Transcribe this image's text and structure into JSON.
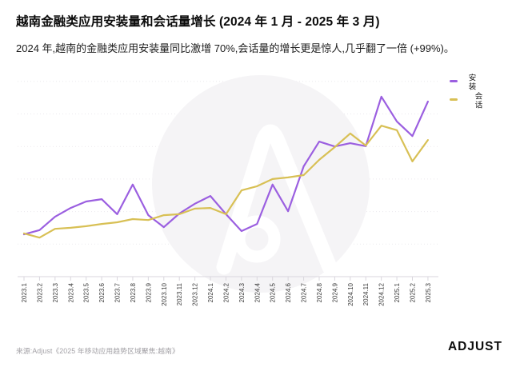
{
  "header": {
    "title": "越南金融类应用安装量和会话量增长 (2024 年 1 月 - 2025 年 3 月)",
    "subtitle": "2024 年,越南的金融类应用安装量同比激增 70%,会话量的增长更是惊人,几乎翻了一倍 (+99%)。"
  },
  "footer": {
    "source": "来源:Adjust《2025 年移动应用趋势区域聚焦:越南》",
    "brand": "ADJUST"
  },
  "colors": {
    "installs_line": "#9b5fe0",
    "sessions_line": "#d8c055",
    "gridline": "#ece9ee",
    "axis": "#d9d6dd",
    "tick_label": "#3b3b3b",
    "watermark_circle": "#f5f4f6",
    "watermark_mark": "#ffffff"
  },
  "chart_data": {
    "type": "line",
    "title": "越南金融类应用安装量和会话量增长 (2024 年 1 月 - 2025 年 3 月)",
    "xlabel": "",
    "ylabel": "",
    "ylim": [
      0,
      60
    ],
    "y_axis_labels_visible": false,
    "grid": "horizontal-dotted",
    "legend_position": "top-right-vertical",
    "categories": [
      "2023.1",
      "2023.2",
      "2023.3",
      "2023.4",
      "2023.5",
      "2023.6",
      "2023.7",
      "2023.8",
      "2023.9",
      "2023.10",
      "2023.11",
      "2023.12",
      "2024.1",
      "2024.2",
      "2024.3",
      "2024.4",
      "2024.5",
      "2024.6",
      "2024.7",
      "2024.8",
      "2024.9",
      "2024.10",
      "2024.11",
      "2024.12",
      "2025.1",
      "2025.2",
      "2025.3"
    ],
    "series": [
      {
        "name": "安装",
        "color": "#9b5fe0",
        "values": [
          13.0,
          14.3,
          18.4,
          21.1,
          23.1,
          23.8,
          19.2,
          28.3,
          18.9,
          15.2,
          19.4,
          22.4,
          24.8,
          19.2,
          14.0,
          16.2,
          28.3,
          20.1,
          33.9,
          41.5,
          40.0,
          41.0,
          40.1,
          55.3,
          47.7,
          43.2,
          53.8
        ]
      },
      {
        "name": "会话",
        "color": "#d8c055",
        "values": [
          13.3,
          12.0,
          14.7,
          15.0,
          15.5,
          16.2,
          16.7,
          17.7,
          17.4,
          18.9,
          19.2,
          20.9,
          21.1,
          19.2,
          26.5,
          27.8,
          30.0,
          30.5,
          31.2,
          35.9,
          39.8,
          44.0,
          40.3,
          46.4,
          45.0,
          35.4,
          42.0
        ]
      }
    ]
  }
}
